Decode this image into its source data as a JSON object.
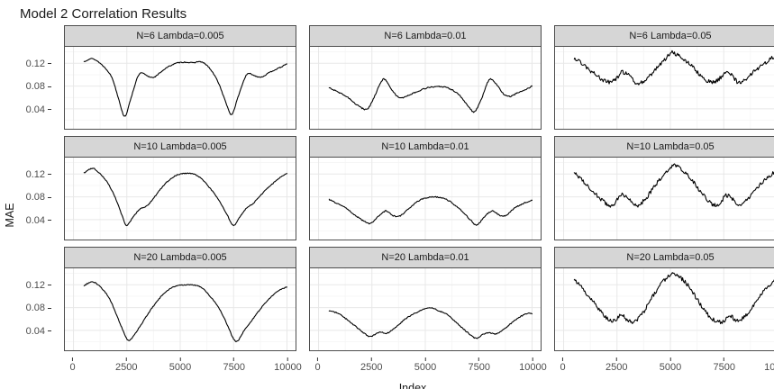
{
  "title": "Model 2 Correlation Results",
  "axis": {
    "x_label": "Index",
    "y_label": "MAE",
    "x_ticks": [
      "0",
      "2500",
      "5000",
      "7500",
      "10000"
    ],
    "y_ticks": [
      "0.12",
      "0.08",
      "0.04"
    ]
  },
  "colors": {
    "strip_bg": "#d6d6d6",
    "panel_border": "#4d4d4d",
    "grid_major": "#e8e8e8",
    "grid_minor": "#f4f4f4",
    "line": "#000000",
    "tick_text": "#4d4d4d",
    "title_text": "#1a1a1a"
  },
  "chart_data": {
    "type": "line",
    "title": "Model 2 Correlation Results",
    "xlabel": "Index",
    "ylabel": "MAE",
    "xlim": [
      -400,
      10400
    ],
    "ylim": [
      0.005,
      0.149
    ],
    "x_tick_values": [
      0,
      2500,
      5000,
      7500,
      10000
    ],
    "y_tick_values": [
      0.12,
      0.08,
      0.04
    ],
    "x_minor": [
      1250,
      3750,
      6250,
      8750
    ],
    "y_minor": [
      0.02,
      0.06,
      0.1,
      0.14
    ],
    "grid": true,
    "legend": false,
    "facet_rows": [
      "N=6",
      "N=10",
      "N=20"
    ],
    "facet_cols": [
      "Lambda=0.005",
      "Lambda=0.01",
      "Lambda=0.05"
    ],
    "facets": [
      {
        "label": "N=6 Lambda=0.005",
        "n": 6,
        "lambda": 0.005,
        "noise": 0.0008,
        "points": [
          [
            500,
            0.123
          ],
          [
            900,
            0.128
          ],
          [
            1400,
            0.115
          ],
          [
            1800,
            0.095
          ],
          [
            2100,
            0.06
          ],
          [
            2400,
            0.027
          ],
          [
            2700,
            0.06
          ],
          [
            3000,
            0.095
          ],
          [
            3200,
            0.103
          ],
          [
            3500,
            0.097
          ],
          [
            3800,
            0.096
          ],
          [
            4100,
            0.105
          ],
          [
            4400,
            0.113
          ],
          [
            4800,
            0.12
          ],
          [
            5200,
            0.122
          ],
          [
            5600,
            0.121
          ],
          [
            5900,
            0.123
          ],
          [
            6200,
            0.118
          ],
          [
            6500,
            0.105
          ],
          [
            6800,
            0.085
          ],
          [
            7100,
            0.055
          ],
          [
            7400,
            0.03
          ],
          [
            7700,
            0.06
          ],
          [
            8000,
            0.092
          ],
          [
            8200,
            0.102
          ],
          [
            8500,
            0.098
          ],
          [
            8800,
            0.096
          ],
          [
            9100,
            0.102
          ],
          [
            9400,
            0.108
          ],
          [
            9700,
            0.113
          ],
          [
            10000,
            0.119
          ]
        ]
      },
      {
        "label": "N=6 Lambda=0.01",
        "n": 6,
        "lambda": 0.01,
        "noise": 0.001,
        "points": [
          [
            500,
            0.077
          ],
          [
            900,
            0.07
          ],
          [
            1300,
            0.062
          ],
          [
            1700,
            0.05
          ],
          [
            2000,
            0.042
          ],
          [
            2300,
            0.04
          ],
          [
            2600,
            0.06
          ],
          [
            2900,
            0.085
          ],
          [
            3100,
            0.092
          ],
          [
            3400,
            0.075
          ],
          [
            3700,
            0.062
          ],
          [
            4000,
            0.06
          ],
          [
            4300,
            0.065
          ],
          [
            4600,
            0.07
          ],
          [
            5000,
            0.076
          ],
          [
            5400,
            0.079
          ],
          [
            5800,
            0.079
          ],
          [
            6100,
            0.076
          ],
          [
            6400,
            0.07
          ],
          [
            6700,
            0.06
          ],
          [
            7000,
            0.045
          ],
          [
            7300,
            0.035
          ],
          [
            7600,
            0.055
          ],
          [
            7900,
            0.085
          ],
          [
            8100,
            0.092
          ],
          [
            8400,
            0.08
          ],
          [
            8700,
            0.065
          ],
          [
            9000,
            0.062
          ],
          [
            9300,
            0.068
          ],
          [
            9600,
            0.072
          ],
          [
            10000,
            0.08
          ]
        ]
      },
      {
        "label": "N=6 Lambda=0.05",
        "n": 6,
        "lambda": 0.05,
        "noise": 0.0035,
        "points": [
          [
            500,
            0.13
          ],
          [
            1000,
            0.115
          ],
          [
            1500,
            0.1
          ],
          [
            2000,
            0.088
          ],
          [
            2400,
            0.09
          ],
          [
            2700,
            0.104
          ],
          [
            3000,
            0.1
          ],
          [
            3400,
            0.086
          ],
          [
            3800,
            0.09
          ],
          [
            4200,
            0.105
          ],
          [
            4600,
            0.12
          ],
          [
            5000,
            0.138
          ],
          [
            5300,
            0.135
          ],
          [
            5600,
            0.128
          ],
          [
            6000,
            0.115
          ],
          [
            6400,
            0.1
          ],
          [
            6800,
            0.088
          ],
          [
            7200,
            0.09
          ],
          [
            7600,
            0.104
          ],
          [
            7900,
            0.098
          ],
          [
            8200,
            0.086
          ],
          [
            8600,
            0.095
          ],
          [
            9000,
            0.108
          ],
          [
            9400,
            0.12
          ],
          [
            10000,
            0.135
          ]
        ]
      },
      {
        "label": "N=10 Lambda=0.005",
        "n": 10,
        "lambda": 0.005,
        "noise": 0.0008,
        "points": [
          [
            500,
            0.122
          ],
          [
            900,
            0.13
          ],
          [
            1200,
            0.122
          ],
          [
            1600,
            0.105
          ],
          [
            2000,
            0.075
          ],
          [
            2300,
            0.045
          ],
          [
            2500,
            0.03
          ],
          [
            2800,
            0.045
          ],
          [
            3100,
            0.058
          ],
          [
            3400,
            0.063
          ],
          [
            3700,
            0.075
          ],
          [
            4000,
            0.09
          ],
          [
            4300,
            0.103
          ],
          [
            4600,
            0.113
          ],
          [
            4900,
            0.119
          ],
          [
            5200,
            0.121
          ],
          [
            5500,
            0.121
          ],
          [
            5800,
            0.117
          ],
          [
            6100,
            0.108
          ],
          [
            6400,
            0.095
          ],
          [
            6800,
            0.075
          ],
          [
            7200,
            0.048
          ],
          [
            7500,
            0.03
          ],
          [
            7800,
            0.045
          ],
          [
            8100,
            0.06
          ],
          [
            8400,
            0.068
          ],
          [
            8700,
            0.08
          ],
          [
            9000,
            0.092
          ],
          [
            9300,
            0.102
          ],
          [
            9600,
            0.112
          ],
          [
            10000,
            0.121
          ]
        ]
      },
      {
        "label": "N=10 Lambda=0.01",
        "n": 10,
        "lambda": 0.01,
        "noise": 0.001,
        "points": [
          [
            500,
            0.075
          ],
          [
            900,
            0.068
          ],
          [
            1300,
            0.06
          ],
          [
            1700,
            0.048
          ],
          [
            2100,
            0.038
          ],
          [
            2400,
            0.033
          ],
          [
            2700,
            0.042
          ],
          [
            3000,
            0.052
          ],
          [
            3200,
            0.055
          ],
          [
            3500,
            0.047
          ],
          [
            3800,
            0.046
          ],
          [
            4100,
            0.055
          ],
          [
            4400,
            0.065
          ],
          [
            4700,
            0.073
          ],
          [
            5000,
            0.078
          ],
          [
            5400,
            0.08
          ],
          [
            5800,
            0.078
          ],
          [
            6100,
            0.073
          ],
          [
            6400,
            0.065
          ],
          [
            6800,
            0.052
          ],
          [
            7100,
            0.04
          ],
          [
            7400,
            0.03
          ],
          [
            7700,
            0.042
          ],
          [
            8000,
            0.053
          ],
          [
            8200,
            0.055
          ],
          [
            8500,
            0.047
          ],
          [
            8800,
            0.048
          ],
          [
            9100,
            0.058
          ],
          [
            9400,
            0.065
          ],
          [
            9700,
            0.07
          ],
          [
            10000,
            0.074
          ]
        ]
      },
      {
        "label": "N=10 Lambda=0.05",
        "n": 10,
        "lambda": 0.05,
        "noise": 0.0035,
        "points": [
          [
            500,
            0.123
          ],
          [
            1000,
            0.105
          ],
          [
            1500,
            0.085
          ],
          [
            2000,
            0.068
          ],
          [
            2300,
            0.066
          ],
          [
            2700,
            0.083
          ],
          [
            3000,
            0.078
          ],
          [
            3400,
            0.065
          ],
          [
            3800,
            0.075
          ],
          [
            4200,
            0.095
          ],
          [
            4600,
            0.115
          ],
          [
            5000,
            0.132
          ],
          [
            5300,
            0.134
          ],
          [
            5600,
            0.125
          ],
          [
            6000,
            0.11
          ],
          [
            6400,
            0.09
          ],
          [
            6800,
            0.072
          ],
          [
            7200,
            0.065
          ],
          [
            7600,
            0.082
          ],
          [
            7900,
            0.076
          ],
          [
            8300,
            0.065
          ],
          [
            8700,
            0.08
          ],
          [
            9100,
            0.098
          ],
          [
            9500,
            0.112
          ],
          [
            10000,
            0.128
          ]
        ]
      },
      {
        "label": "N=20 Lambda=0.005",
        "n": 20,
        "lambda": 0.005,
        "noise": 0.0008,
        "points": [
          [
            500,
            0.119
          ],
          [
            900,
            0.125
          ],
          [
            1300,
            0.115
          ],
          [
            1700,
            0.095
          ],
          [
            2100,
            0.06
          ],
          [
            2400,
            0.033
          ],
          [
            2600,
            0.022
          ],
          [
            2900,
            0.035
          ],
          [
            3200,
            0.052
          ],
          [
            3600,
            0.075
          ],
          [
            4000,
            0.095
          ],
          [
            4400,
            0.11
          ],
          [
            4800,
            0.118
          ],
          [
            5200,
            0.12
          ],
          [
            5600,
            0.12
          ],
          [
            6000,
            0.115
          ],
          [
            6400,
            0.1
          ],
          [
            6800,
            0.08
          ],
          [
            7200,
            0.05
          ],
          [
            7500,
            0.025
          ],
          [
            7700,
            0.022
          ],
          [
            8000,
            0.04
          ],
          [
            8400,
            0.06
          ],
          [
            8800,
            0.08
          ],
          [
            9200,
            0.097
          ],
          [
            9600,
            0.11
          ],
          [
            10000,
            0.116
          ]
        ]
      },
      {
        "label": "N=20 Lambda=0.01",
        "n": 20,
        "lambda": 0.01,
        "noise": 0.001,
        "points": [
          [
            500,
            0.074
          ],
          [
            900,
            0.07
          ],
          [
            1300,
            0.06
          ],
          [
            1700,
            0.048
          ],
          [
            2100,
            0.036
          ],
          [
            2400,
            0.029
          ],
          [
            2700,
            0.034
          ],
          [
            2900,
            0.037
          ],
          [
            3200,
            0.035
          ],
          [
            3600,
            0.045
          ],
          [
            4000,
            0.058
          ],
          [
            4400,
            0.068
          ],
          [
            4800,
            0.075
          ],
          [
            5200,
            0.08
          ],
          [
            5600,
            0.075
          ],
          [
            6000,
            0.068
          ],
          [
            6400,
            0.056
          ],
          [
            6800,
            0.042
          ],
          [
            7200,
            0.03
          ],
          [
            7400,
            0.026
          ],
          [
            7700,
            0.033
          ],
          [
            8000,
            0.036
          ],
          [
            8300,
            0.034
          ],
          [
            8700,
            0.042
          ],
          [
            9100,
            0.055
          ],
          [
            9500,
            0.065
          ],
          [
            9800,
            0.07
          ],
          [
            10000,
            0.069
          ]
        ]
      },
      {
        "label": "N=20 Lambda=0.05",
        "n": 20,
        "lambda": 0.05,
        "noise": 0.0035,
        "points": [
          [
            500,
            0.13
          ],
          [
            1000,
            0.108
          ],
          [
            1500,
            0.085
          ],
          [
            2000,
            0.062
          ],
          [
            2300,
            0.056
          ],
          [
            2700,
            0.066
          ],
          [
            3000,
            0.058
          ],
          [
            3300,
            0.056
          ],
          [
            3700,
            0.07
          ],
          [
            4100,
            0.095
          ],
          [
            4500,
            0.118
          ],
          [
            4900,
            0.135
          ],
          [
            5200,
            0.138
          ],
          [
            5500,
            0.132
          ],
          [
            5900,
            0.115
          ],
          [
            6300,
            0.092
          ],
          [
            6700,
            0.07
          ],
          [
            7100,
            0.057
          ],
          [
            7500,
            0.056
          ],
          [
            7800,
            0.066
          ],
          [
            8100,
            0.056
          ],
          [
            8500,
            0.065
          ],
          [
            8900,
            0.085
          ],
          [
            9300,
            0.105
          ],
          [
            9700,
            0.122
          ],
          [
            10000,
            0.13
          ]
        ]
      }
    ]
  }
}
